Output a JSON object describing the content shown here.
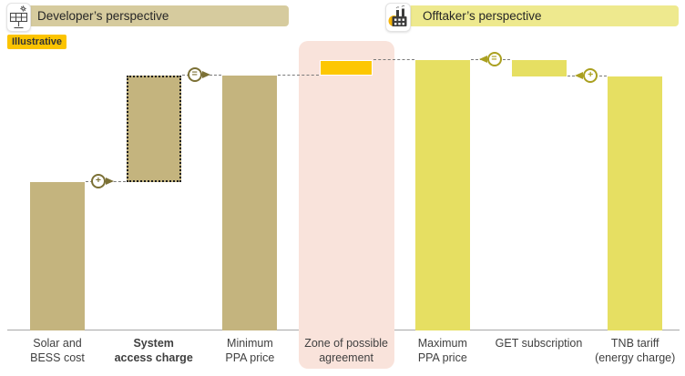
{
  "header": {
    "developer_banner": "Developer’s perspective",
    "offtaker_banner": "Offtaker’s perspective",
    "badge": "Illustrative",
    "developer_icon": "solar-panel-icon",
    "offtaker_icon": "factory-icon"
  },
  "colors": {
    "khaki": "#c4b47e",
    "khaki_banner": "#d6cb9e",
    "yellow": "#e6df62",
    "yellow_banner": "#eee98e",
    "gold": "#fdc702",
    "pink": "#f9e3db",
    "badge_bg": "#fcc400",
    "khaki_dark": "#7b7035",
    "yellow_dark": "#aaa020",
    "gray": "#7a7a7a"
  },
  "chart_data": {
    "type": "bar",
    "subtype": "waterfall-range (no numeric axis shown; values estimated on 0-100 relative price scale)",
    "title": "",
    "xlabel": "",
    "ylabel": "",
    "grid": false,
    "legend": false,
    "ylim": [
      0,
      105
    ],
    "categories": [
      "Solar and BESS cost",
      "System access charge",
      "Minimum PPA price",
      "Zone of possible agreement",
      "Maximum PPA price",
      "GET subscription",
      "TNB tariff (energy charge)"
    ],
    "bars": [
      {
        "col": 0,
        "name": "solar-bess-cost",
        "label_lines": [
          "Solar and",
          "BESS cost"
        ],
        "from": 0,
        "to": 54.7,
        "color": "khaki",
        "style": "solid",
        "bold_label": false
      },
      {
        "col": 1,
        "name": "system-access-charge",
        "label_lines": [
          "System",
          "access charge"
        ],
        "from": 54.7,
        "to": 93.9,
        "color": "khaki",
        "style": "dotted-outline",
        "bold_label": true
      },
      {
        "col": 2,
        "name": "minimum-ppa-price",
        "label_lines": [
          "Minimum",
          "PPA price"
        ],
        "from": 0,
        "to": 93.9,
        "color": "khaki",
        "style": "solid",
        "bold_label": false
      },
      {
        "col": 3,
        "name": "zone-of-possible-agreement",
        "label_lines": [
          "Zone of possible",
          "agreement"
        ],
        "from": 93.9,
        "to": 99.8,
        "color": "gold",
        "style": "zopa",
        "bold_label": false
      },
      {
        "col": 4,
        "name": "maximum-ppa-price",
        "label_lines": [
          "Maximum",
          "PPA price"
        ],
        "from": 0,
        "to": 99.8,
        "color": "yellow",
        "style": "solid",
        "bold_label": false
      },
      {
        "col": 5,
        "name": "get-subscription",
        "label_lines": [
          "GET subscription"
        ],
        "from": 93.7,
        "to": 99.8,
        "color": "yellow",
        "style": "solid",
        "bold_label": false
      },
      {
        "col": 6,
        "name": "tnb-tariff",
        "label_lines": [
          "TNB tariff",
          "(energy charge)"
        ],
        "from": 0,
        "to": 93.7,
        "color": "yellow",
        "style": "solid",
        "bold_label": false
      }
    ],
    "connectors": [
      {
        "from_col": 0,
        "to_col": 1,
        "level": 54.7,
        "symbol": "+",
        "arrow": "right",
        "color": "khaki_dark"
      },
      {
        "from_col": 1,
        "to_col": 2,
        "level": 93.9,
        "symbol": "=",
        "arrow": "right",
        "color": "khaki_dark"
      },
      {
        "from_col": 2,
        "to_col": 3,
        "level": 93.9,
        "symbol": null,
        "arrow": null,
        "color": "gray"
      },
      {
        "from_col": 3,
        "to_col": 4,
        "level": 99.8,
        "symbol": null,
        "arrow": null,
        "color": "gray"
      },
      {
        "from_col": 4,
        "to_col": 5,
        "level": 99.8,
        "symbol": "=",
        "arrow": "left",
        "color": "yellow_dark"
      },
      {
        "from_col": 5,
        "to_col": 6,
        "level": 93.7,
        "symbol": "+",
        "arrow": "left",
        "color": "yellow_dark"
      }
    ]
  }
}
